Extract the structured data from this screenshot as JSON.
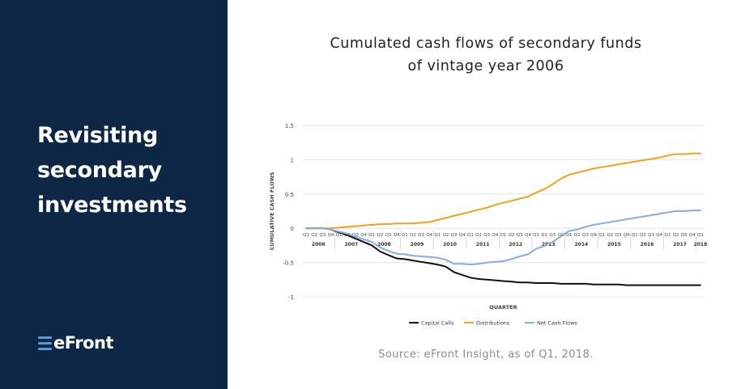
{
  "sidebar": {
    "headline_lines": [
      "Revisiting",
      "secondary",
      "investments"
    ],
    "logo_text": "eFront",
    "background_color": "#0f2747"
  },
  "chart_title_lines": [
    "Cumulated cash flows of secondary funds",
    "of vintage year 2006"
  ],
  "source_note": "Source: eFront Insight, as of Q1, 2018.",
  "chart_data": {
    "type": "line",
    "title": "Cumulated cash flows of secondary funds of vintage year 2006",
    "xlabel": "QUARTER",
    "ylabel": "CUMULATIVE CASH FLOWS",
    "ylim": [
      -1,
      1.5
    ],
    "yticks": [
      -1,
      -0.5,
      0,
      0.5,
      1,
      1.5
    ],
    "ytick_labels": [
      "-1",
      "-0.5",
      "0",
      "0.5",
      "1",
      "1.5"
    ],
    "grid": true,
    "legend_position": "bottom",
    "quarter_labels": [
      "Q1",
      "Q2",
      "Q3",
      "Q4",
      "Q1",
      "Q2",
      "Q3",
      "Q4",
      "Q1",
      "Q2",
      "Q3",
      "Q4",
      "Q1",
      "Q2",
      "Q3",
      "Q4",
      "Q1",
      "Q2",
      "Q3",
      "Q4",
      "Q1",
      "Q2",
      "Q3",
      "Q4",
      "Q1",
      "Q2",
      "Q3",
      "Q4",
      "Q1",
      "Q2",
      "Q3",
      "Q4",
      "Q1",
      "Q2",
      "Q3",
      "Q4",
      "Q1",
      "Q2",
      "Q3",
      "Q4",
      "Q1",
      "Q2",
      "Q3",
      "Q4",
      "Q1",
      "Q2",
      "Q3",
      "Q4",
      "Q1"
    ],
    "year_groups": [
      {
        "label": "2006",
        "count": 4
      },
      {
        "label": "2007",
        "count": 4
      },
      {
        "label": "2008",
        "count": 4
      },
      {
        "label": "2009",
        "count": 4
      },
      {
        "label": "2010",
        "count": 4
      },
      {
        "label": "2011",
        "count": 4
      },
      {
        "label": "2012",
        "count": 4
      },
      {
        "label": "2013",
        "count": 4
      },
      {
        "label": "2014",
        "count": 4
      },
      {
        "label": "2015",
        "count": 4
      },
      {
        "label": "2016",
        "count": 4
      },
      {
        "label": "2017",
        "count": 4
      },
      {
        "label": "2018",
        "count": 1
      }
    ],
    "series": [
      {
        "name": "Capital Calls",
        "color": "#111111",
        "values": [
          0,
          0,
          0,
          -0.02,
          -0.06,
          -0.1,
          -0.15,
          -0.2,
          -0.25,
          -0.34,
          -0.39,
          -0.44,
          -0.45,
          -0.47,
          -0.49,
          -0.51,
          -0.53,
          -0.56,
          -0.64,
          -0.68,
          -0.72,
          -0.74,
          -0.75,
          -0.76,
          -0.77,
          -0.78,
          -0.79,
          -0.79,
          -0.8,
          -0.8,
          -0.8,
          -0.81,
          -0.81,
          -0.81,
          -0.81,
          -0.82,
          -0.82,
          -0.82,
          -0.82,
          -0.83,
          -0.83,
          -0.83,
          -0.83,
          -0.83,
          -0.83,
          -0.83,
          -0.83,
          -0.83,
          -0.83
        ]
      },
      {
        "name": "Distributions",
        "color": "#f0a21b",
        "values": [
          0,
          0,
          0,
          0,
          0.01,
          0.02,
          0.03,
          0.04,
          0.05,
          0.06,
          0.06,
          0.07,
          0.07,
          0.07,
          0.08,
          0.09,
          0.12,
          0.15,
          0.18,
          0.21,
          0.24,
          0.27,
          0.3,
          0.34,
          0.37,
          0.4,
          0.43,
          0.46,
          0.52,
          0.57,
          0.64,
          0.72,
          0.78,
          0.81,
          0.84,
          0.87,
          0.89,
          0.91,
          0.93,
          0.95,
          0.97,
          0.99,
          1.01,
          1.03,
          1.06,
          1.08,
          1.08,
          1.09,
          1.09
        ]
      },
      {
        "name": "Net Cash Flows",
        "color": "#86aedb",
        "values": [
          0,
          0,
          0,
          -0.02,
          -0.05,
          -0.08,
          -0.12,
          -0.16,
          -0.2,
          -0.28,
          -0.33,
          -0.37,
          -0.38,
          -0.4,
          -0.41,
          -0.42,
          -0.43,
          -0.46,
          -0.52,
          -0.52,
          -0.53,
          -0.52,
          -0.5,
          -0.49,
          -0.48,
          -0.45,
          -0.41,
          -0.38,
          -0.3,
          -0.26,
          -0.2,
          -0.12,
          -0.04,
          -0.02,
          0.02,
          0.05,
          0.07,
          0.09,
          0.11,
          0.13,
          0.15,
          0.17,
          0.19,
          0.21,
          0.23,
          0.25,
          0.25,
          0.26,
          0.26
        ]
      }
    ]
  }
}
